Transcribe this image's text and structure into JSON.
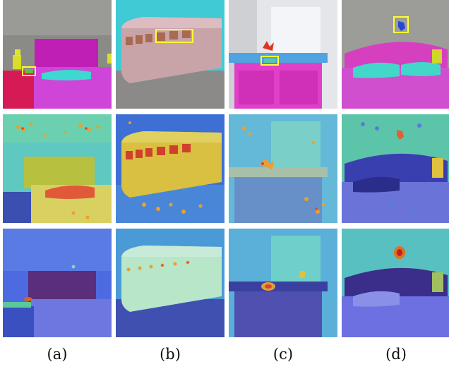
{
  "captions": [
    "(a)",
    "(b)",
    "(c)",
    "(d)"
  ],
  "rows": [
    "segmentation-overlay",
    "attention-map-baseline",
    "attention-map-ours"
  ],
  "columns": [
    {
      "scene": "bedroom-lamp"
    },
    {
      "scene": "train-windows"
    },
    {
      "scene": "bathroom-sink"
    },
    {
      "scene": "bedroom-wall-ornament"
    }
  ]
}
